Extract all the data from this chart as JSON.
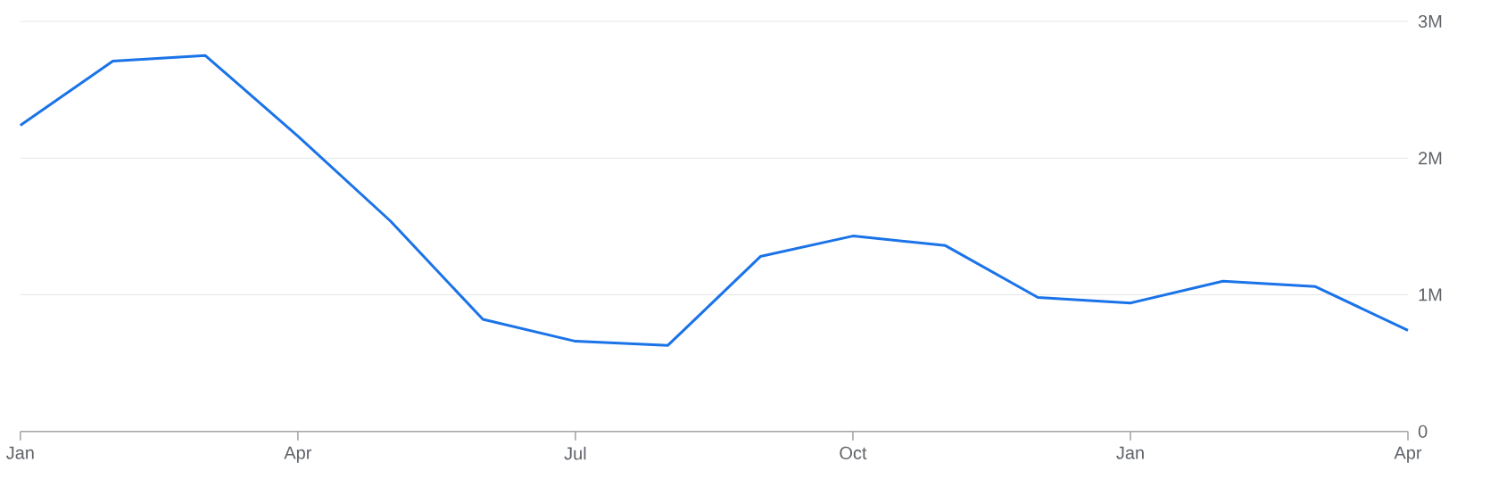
{
  "chart_data": {
    "type": "line",
    "categories": [
      "Jan",
      null,
      null,
      "Apr",
      null,
      null,
      "Jul",
      null,
      null,
      "Oct",
      null,
      null,
      "Jan",
      null,
      null,
      "Apr"
    ],
    "series": [
      {
        "color": "#1a73e8",
        "values": [
          2240000,
          2710000,
          2750000,
          2160000,
          1540000,
          820000,
          660000,
          630000,
          1280000,
          1430000,
          1360000,
          980000,
          940000,
          1100000,
          1060000,
          740000
        ]
      }
    ],
    "ylim": [
      0,
      3000000
    ],
    "yticks": [
      0,
      {
        "value": 1000000,
        "label": "1M"
      },
      {
        "value": 2000000,
        "label": "2M"
      },
      {
        "value": 3000000,
        "label": "3M"
      }
    ],
    "grid": "y"
  }
}
